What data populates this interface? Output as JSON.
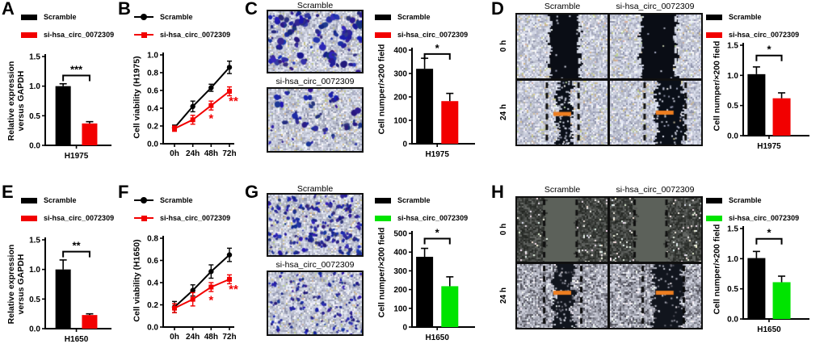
{
  "palette": {
    "black": "#000000",
    "red": "#f20000",
    "green": "#00e400",
    "orange": "#ee7e20"
  },
  "legend": {
    "scramble": "Scramble",
    "si": "si-hsa_circ_0072309"
  },
  "panels": {
    "A": {
      "letter": "A"
    },
    "B": {
      "letter": "B"
    },
    "C": {
      "letter": "C",
      "image_titles": [
        "Scramble",
        "si-hsa_circ_0072309"
      ]
    },
    "D": {
      "letter": "D",
      "column_titles": [
        "Scramble",
        "si-hsa_circ_0072309"
      ],
      "row_labels": [
        "0 h",
        "24 h"
      ]
    },
    "E": {
      "letter": "E"
    },
    "F": {
      "letter": "F"
    },
    "G": {
      "letter": "G",
      "image_titles": [
        "Scramble",
        "si-hsa_circ_0072309"
      ]
    },
    "H": {
      "letter": "H",
      "column_titles": [
        "Scramble",
        "si-hsa_circ_0072309"
      ],
      "row_labels": [
        "0 h",
        "24 h"
      ]
    }
  },
  "chart_data": [
    {
      "id": "A",
      "type": "bar",
      "categories": [
        "H1975"
      ],
      "series": [
        {
          "name": "Scramble",
          "color_key": "black",
          "values": [
            1.0
          ],
          "errors": [
            0.04
          ]
        },
        {
          "name": "si-hsa_circ_0072309",
          "color_key": "red",
          "values": [
            0.37
          ],
          "errors": [
            0.03
          ]
        }
      ],
      "ylabel": "Relative expression versus GAPDH",
      "ylim": [
        0,
        1.5
      ],
      "yticks": [
        0,
        0.5,
        1.0,
        1.5
      ],
      "ytick_labels": [
        "0.0",
        "0.5",
        "1.0",
        "1.5"
      ],
      "sig": "***",
      "sig_y": 1.18
    },
    {
      "id": "B",
      "type": "line",
      "x": [
        "0h",
        "24h",
        "48h",
        "72h"
      ],
      "series": [
        {
          "name": "Scramble",
          "color_key": "black",
          "marker": "circle",
          "values": [
            0.18,
            0.42,
            0.63,
            0.86
          ],
          "errors": [
            0.03,
            0.06,
            0.04,
            0.07
          ]
        },
        {
          "name": "si-hsa_circ_0072309",
          "color_key": "red",
          "marker": "square",
          "values": [
            0.17,
            0.27,
            0.43,
            0.59
          ],
          "errors": [
            0.03,
            0.05,
            0.05,
            0.05
          ]
        }
      ],
      "ylabel": "Cell viability (H1975)",
      "ylim": [
        0,
        1.0
      ],
      "yticks": [
        0,
        0.2,
        0.4,
        0.6,
        0.8,
        1.0
      ],
      "ytick_labels": [
        "0.0",
        "0.2",
        "0.4",
        "0.6",
        "0.8",
        "1.0"
      ],
      "annotations": [
        {
          "x_index": 2,
          "text": "*"
        },
        {
          "x_index": 3,
          "text": "**"
        }
      ]
    },
    {
      "id": "C",
      "type": "bar",
      "categories": [
        "H1975"
      ],
      "series": [
        {
          "name": "Scramble",
          "color_key": "black",
          "values": [
            320
          ],
          "errors": [
            45
          ]
        },
        {
          "name": "si-hsa_circ_0072309",
          "color_key": "red",
          "values": [
            182
          ],
          "errors": [
            33
          ]
        }
      ],
      "ylabel": "Cell numper/×200 field",
      "ylim": [
        0,
        400
      ],
      "yticks": [
        0,
        100,
        200,
        300,
        400
      ],
      "ytick_labels": [
        "0",
        "100",
        "200",
        "300",
        "400"
      ],
      "sig": "*",
      "sig_y": 383
    },
    {
      "id": "D",
      "type": "bar",
      "categories": [
        "H1975"
      ],
      "series": [
        {
          "name": "Scramble",
          "color_key": "black",
          "values": [
            1.02
          ],
          "errors": [
            0.12
          ]
        },
        {
          "name": "si-hsa_circ_0072309",
          "color_key": "red",
          "values": [
            0.62
          ],
          "errors": [
            0.09
          ]
        }
      ],
      "ylabel": "Cell numper/×200 field",
      "ylim": [
        0,
        1.5
      ],
      "yticks": [
        0,
        0.5,
        1.0,
        1.5
      ],
      "ytick_labels": [
        "0.0",
        "0.5",
        "1.0",
        "1.5"
      ],
      "sig": "*",
      "sig_y": 1.33
    },
    {
      "id": "E",
      "type": "bar",
      "categories": [
        "H1650"
      ],
      "series": [
        {
          "name": "Scramble",
          "color_key": "black",
          "values": [
            1.0
          ],
          "errors": [
            0.16
          ]
        },
        {
          "name": "si-hsa_circ_0072309",
          "color_key": "red",
          "values": [
            0.23
          ],
          "errors": [
            0.02
          ]
        }
      ],
      "ylabel": "Relative expression versus GAPDH",
      "ylim": [
        0,
        1.5
      ],
      "yticks": [
        0,
        0.5,
        1.0,
        1.5
      ],
      "ytick_labels": [
        "0.0",
        "0.5",
        "1.0",
        "1.5"
      ],
      "sig": "**",
      "sig_y": 1.3
    },
    {
      "id": "F",
      "type": "line",
      "x": [
        "0h",
        "24h",
        "48h",
        "72h"
      ],
      "series": [
        {
          "name": "Scramble",
          "color_key": "black",
          "marker": "circle",
          "values": [
            0.18,
            0.33,
            0.5,
            0.65
          ],
          "errors": [
            0.05,
            0.05,
            0.06,
            0.06
          ]
        },
        {
          "name": "si-hsa_circ_0072309",
          "color_key": "red",
          "marker": "square",
          "values": [
            0.17,
            0.25,
            0.36,
            0.43
          ],
          "errors": [
            0.04,
            0.06,
            0.04,
            0.04
          ]
        }
      ],
      "ylabel": "Cell viability (H1650)",
      "ylim": [
        0,
        0.8
      ],
      "yticks": [
        0,
        0.2,
        0.4,
        0.6,
        0.8
      ],
      "ytick_labels": [
        "0.0",
        "0.2",
        "0.4",
        "0.6",
        "0.8"
      ],
      "annotations": [
        {
          "x_index": 2,
          "text": "*"
        },
        {
          "x_index": 3,
          "text": "**"
        }
      ]
    },
    {
      "id": "G",
      "type": "bar",
      "categories": [
        "H1650"
      ],
      "series": [
        {
          "name": "Scramble",
          "color_key": "black",
          "values": [
            375
          ],
          "errors": [
            45
          ]
        },
        {
          "name": "si-hsa_circ_0072309",
          "color_key": "green",
          "values": [
            218
          ],
          "errors": [
            50
          ]
        }
      ],
      "ylabel": "Cell numper/×200 field",
      "ylim": [
        0,
        500
      ],
      "yticks": [
        0,
        100,
        200,
        300,
        400,
        500
      ],
      "ytick_labels": [
        "0",
        "100",
        "200",
        "300",
        "400",
        "500"
      ],
      "sig": "*",
      "sig_y": 472
    },
    {
      "id": "H",
      "type": "bar",
      "categories": [
        "H1650"
      ],
      "series": [
        {
          "name": "Scramble",
          "color_key": "black",
          "values": [
            1.01
          ],
          "errors": [
            0.11
          ]
        },
        {
          "name": "si-hsa_circ_0072309",
          "color_key": "green",
          "values": [
            0.61
          ],
          "errors": [
            0.1
          ]
        }
      ],
      "ylabel": "Cell numper/×200 field",
      "ylim": [
        0,
        1.5
      ],
      "yticks": [
        0,
        0.5,
        1.0,
        1.5
      ],
      "ytick_labels": [
        "0.0",
        "0.5",
        "1.0",
        "1.5"
      ],
      "sig": "*",
      "sig_y": 1.33
    }
  ]
}
